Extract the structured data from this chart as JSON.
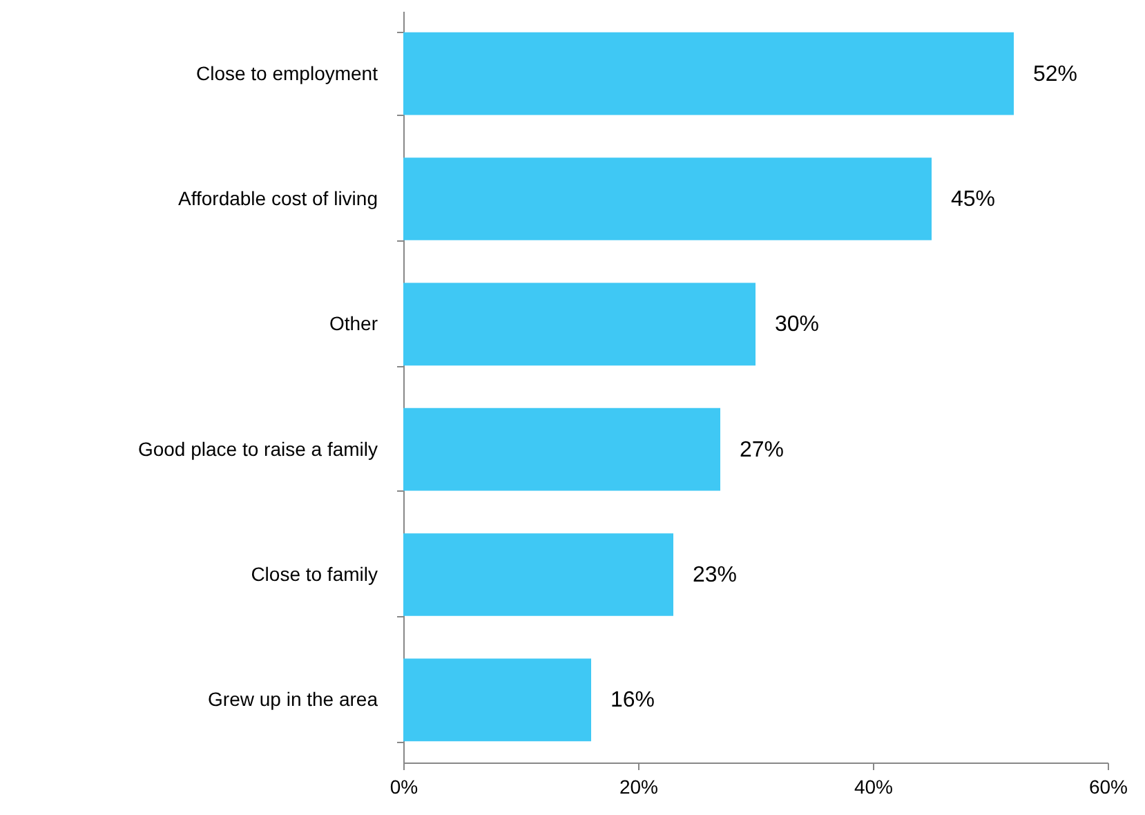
{
  "chart_data": {
    "type": "bar",
    "orientation": "horizontal",
    "categories": [
      "Close to employment",
      "Affordable cost of living",
      "Other",
      "Good place to raise a family",
      "Close to family",
      "Grew up in the area"
    ],
    "values": [
      52,
      45,
      30,
      27,
      23,
      16
    ],
    "value_labels": [
      "52%",
      "45%",
      "30%",
      "27%",
      "23%",
      "16%"
    ],
    "color": "#3fc8f4",
    "xlim": [
      0,
      60
    ],
    "xticks": [
      {
        "value": 0,
        "label": "0%"
      },
      {
        "value": 20,
        "label": "20%"
      },
      {
        "value": 40,
        "label": "40%"
      },
      {
        "value": 60,
        "label": "60%"
      }
    ],
    "grid": false
  }
}
